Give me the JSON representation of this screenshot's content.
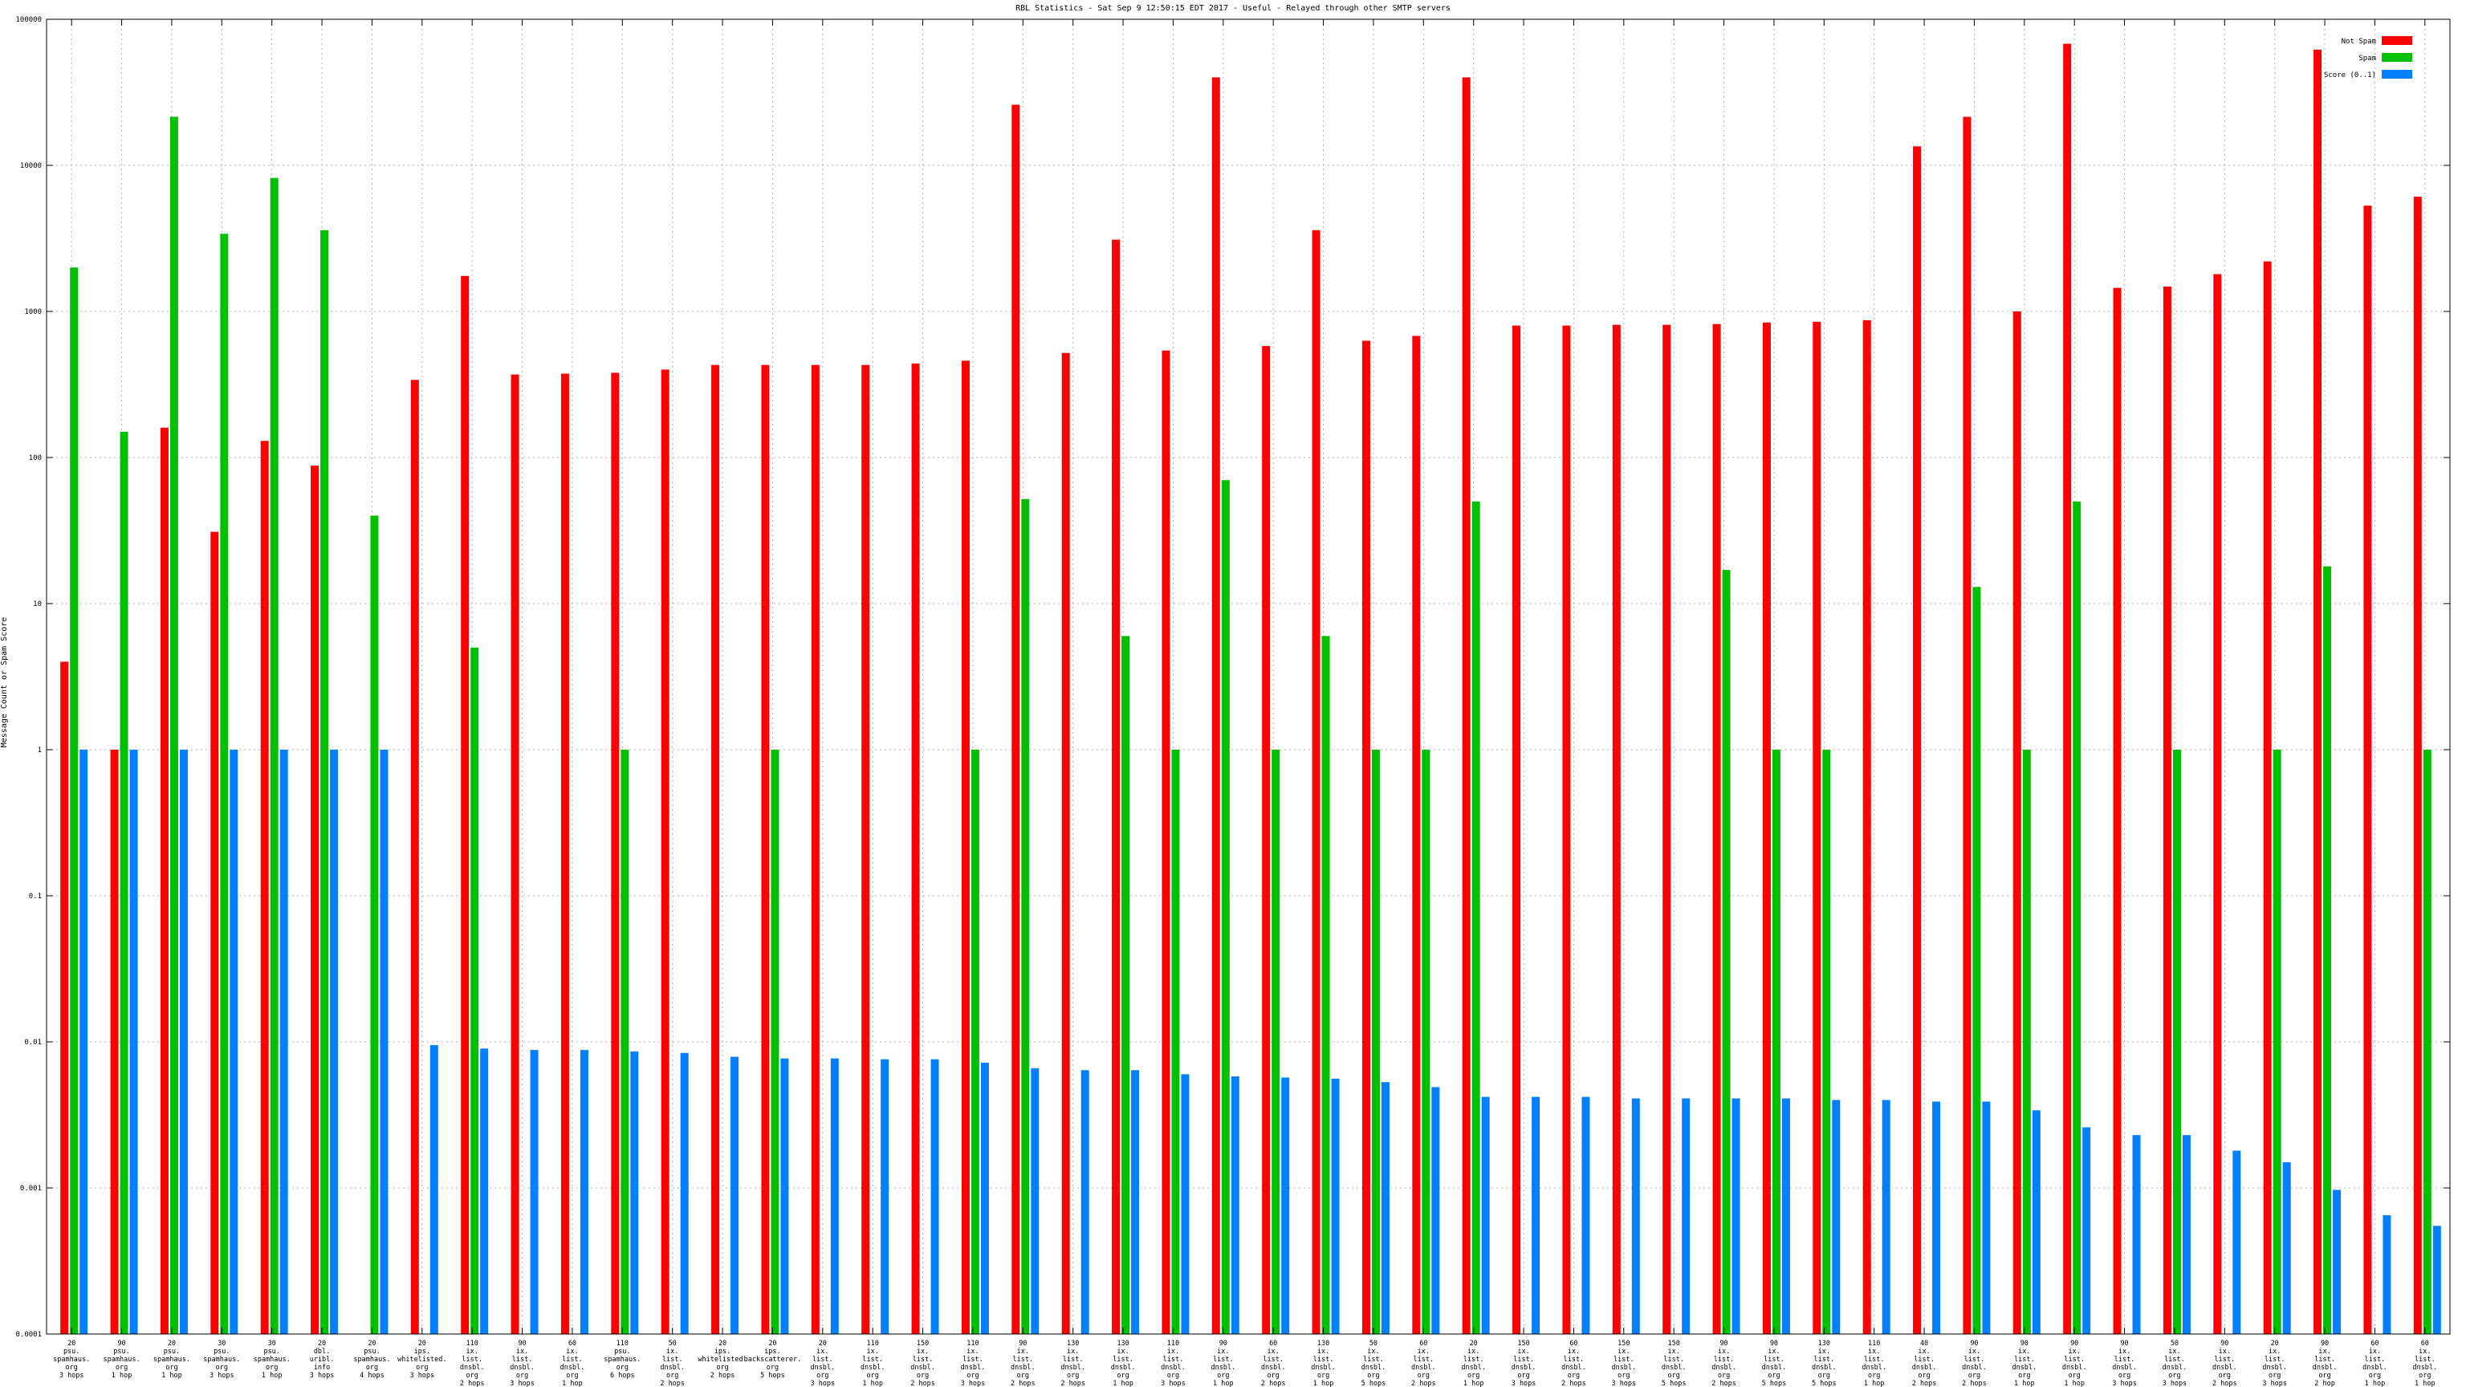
{
  "chart_data": {
    "type": "bar",
    "title": "RBL Statistics - Sat Sep  9 12:50:15 EDT 2017 - Useful - Relayed through other SMTP servers",
    "xlabel": "",
    "ylabel": "Message Count or Spam Score",
    "yscale": "log",
    "ylim": [
      0.0001,
      100000
    ],
    "yticks": [
      "0.0001",
      "0.001",
      "0.01",
      "0.1",
      "1",
      "10",
      "100",
      "1000",
      "10000",
      "100000"
    ],
    "grid": true,
    "legend_position": "top-right",
    "categories": [
      [
        "20",
        "psu.",
        "spamhaus.",
        "org",
        "3 hops"
      ],
      [
        "90",
        "psu.",
        "spamhaus.",
        "org",
        "1 hop"
      ],
      [
        "20",
        "psu.",
        "spamhaus.",
        "org",
        "1 hop"
      ],
      [
        "30",
        "psu.",
        "spamhaus.",
        "org",
        "3 hops"
      ],
      [
        "30",
        "psu.",
        "spamhaus.",
        "org",
        "1 hop"
      ],
      [
        "20",
        "dbl.",
        "uribl.",
        "info",
        "3 hops"
      ],
      [
        "20",
        "psu.",
        "spamhaus.",
        "org",
        "4 hops"
      ],
      [
        "20",
        "ips.",
        "whitelisted.",
        "org",
        "3 hops"
      ],
      [
        "110",
        "ix.",
        "list.",
        "dnsbl.",
        "org",
        "2 hops"
      ],
      [
        "90",
        "ix.",
        "list.",
        "dnsbl.",
        "org",
        "3 hops"
      ],
      [
        "60",
        "ix.",
        "list.",
        "dnsbl.",
        "org",
        "1 hop"
      ],
      [
        "110",
        "psu.",
        "spamhaus.",
        "org",
        "6 hops"
      ],
      [
        "50",
        "ix.",
        "list.",
        "dnsbl.",
        "org",
        "2 hops"
      ],
      [
        "20",
        "ips.",
        "whitelisted.",
        "org",
        "2 hops"
      ],
      [
        "20",
        "ips.",
        "backscatterer.",
        "org",
        "5 hops"
      ],
      [
        "20",
        "ix.",
        "list.",
        "dnsbl.",
        "org",
        "3 hops"
      ],
      [
        "110",
        "ix.",
        "list.",
        "dnsbl.",
        "org",
        "1 hop"
      ],
      [
        "150",
        "ix.",
        "list.",
        "dnsbl.",
        "org",
        "2 hops"
      ],
      [
        "110",
        "ix.",
        "list.",
        "dnsbl.",
        "org",
        "3 hops"
      ],
      [
        "90",
        "ix.",
        "list.",
        "dnsbl.",
        "org",
        "2 hops"
      ],
      [
        "130",
        "ix.",
        "list.",
        "dnsbl.",
        "org",
        "2 hops"
      ],
      [
        "130",
        "ix.",
        "list.",
        "dnsbl.",
        "org",
        "1 hop"
      ],
      [
        "110",
        "ix.",
        "list.",
        "dnsbl.",
        "org",
        "3 hops"
      ],
      [
        "90",
        "ix.",
        "list.",
        "dnsbl.",
        "org",
        "1 hop"
      ],
      [
        "60",
        "ix.",
        "list.",
        "dnsbl.",
        "org",
        "2 hops"
      ],
      [
        "130",
        "ix.",
        "list.",
        "dnsbl.",
        "org",
        "1 hop"
      ],
      [
        "50",
        "ix.",
        "list.",
        "dnsbl.",
        "org",
        "5 hops"
      ],
      [
        "60",
        "ix.",
        "list.",
        "dnsbl.",
        "org",
        "2 hops"
      ],
      [
        "20",
        "ix.",
        "list.",
        "dnsbl.",
        "org",
        "1 hop"
      ],
      [
        "150",
        "ix.",
        "list.",
        "dnsbl.",
        "org",
        "3 hops"
      ],
      [
        "60",
        "ix.",
        "list.",
        "dnsbl.",
        "org",
        "2 hops"
      ],
      [
        "150",
        "ix.",
        "list.",
        "dnsbl.",
        "org",
        "3 hops"
      ],
      [
        "150",
        "ix.",
        "list.",
        "dnsbl.",
        "org",
        "5 hops"
      ],
      [
        "90",
        "ix.",
        "list.",
        "dnsbl.",
        "org",
        "2 hops"
      ],
      [
        "90",
        "ix.",
        "list.",
        "dnsbl.",
        "org",
        "5 hops"
      ],
      [
        "130",
        "ix.",
        "list.",
        "dnsbl.",
        "org",
        "5 hops"
      ],
      [
        "110",
        "ix.",
        "list.",
        "dnsbl.",
        "org",
        "1 hop"
      ],
      [
        "40",
        "ix.",
        "list.",
        "dnsbl.",
        "org",
        "2 hops"
      ],
      [
        "90",
        "ix.",
        "list.",
        "dnsbl.",
        "org",
        "2 hops"
      ],
      [
        "90",
        "ix.",
        "list.",
        "dnsbl.",
        "org",
        "1 hop"
      ],
      [
        "90",
        "ix.",
        "list.",
        "dnsbl.",
        "org",
        "1 hop"
      ],
      [
        "90",
        "ix.",
        "list.",
        "dnsbl.",
        "org",
        "3 hops"
      ],
      [
        "50",
        "ix.",
        "list.",
        "dnsbl.",
        "org",
        "3 hops"
      ],
      [
        "90",
        "ix.",
        "list.",
        "dnsbl.",
        "org",
        "2 hops"
      ],
      [
        "20",
        "ix.",
        "list.",
        "dnsbl.",
        "org",
        "3 hops"
      ],
      [
        "90",
        "ix.",
        "list.",
        "dnsbl.",
        "org",
        "2 hop"
      ],
      [
        "60",
        "ix.",
        "list.",
        "dnsbl.",
        "org",
        "1 hop"
      ],
      [
        "60",
        "ix.",
        "list.",
        "dnsbl.",
        "org",
        "1 hop"
      ]
    ],
    "series": [
      {
        "name": "Not Spam",
        "color": "#ff0000",
        "values": [
          4,
          1,
          160,
          31,
          130,
          88,
          null,
          340,
          1750,
          370,
          375,
          380,
          400,
          430,
          430,
          430,
          430,
          440,
          460,
          26000,
          520,
          3100,
          540,
          40000,
          580,
          3600,
          630,
          680,
          40000,
          800,
          800,
          810,
          810,
          820,
          840,
          850,
          870,
          13500,
          21500,
          1000,
          68000,
          1450,
          1480,
          1800,
          2200,
          62000,
          5300,
          6100
        ]
      },
      {
        "name": "Spam",
        "color": "#00c000",
        "values": [
          2000,
          150,
          21500,
          3400,
          8200,
          3600,
          40,
          null,
          5,
          null,
          null,
          1,
          null,
          null,
          1,
          null,
          null,
          null,
          1,
          52,
          null,
          6,
          1,
          70,
          1,
          6,
          1,
          1,
          50,
          null,
          null,
          null,
          null,
          17,
          1,
          1,
          null,
          null,
          13,
          1,
          50,
          null,
          1,
          null,
          1,
          18,
          null,
          1
        ]
      },
      {
        "name": "Score (0..1)",
        "color": "#0080ff",
        "values": [
          1,
          1,
          1,
          1,
          1,
          1,
          1,
          0.0095,
          0.009,
          0.0088,
          0.0088,
          0.0086,
          0.0084,
          0.0079,
          0.0077,
          0.0077,
          0.0076,
          0.0076,
          0.0072,
          0.0066,
          0.0064,
          0.0064,
          0.006,
          0.0058,
          0.0057,
          0.0056,
          0.0053,
          0.0049,
          0.0042,
          0.0042,
          0.0042,
          0.0041,
          0.0041,
          0.0041,
          0.0041,
          0.004,
          0.004,
          0.0039,
          0.0039,
          0.0034,
          0.0026,
          0.0023,
          0.0023,
          0.0018,
          0.0015,
          0.00097,
          0.00065,
          0.00055
        ]
      }
    ]
  }
}
